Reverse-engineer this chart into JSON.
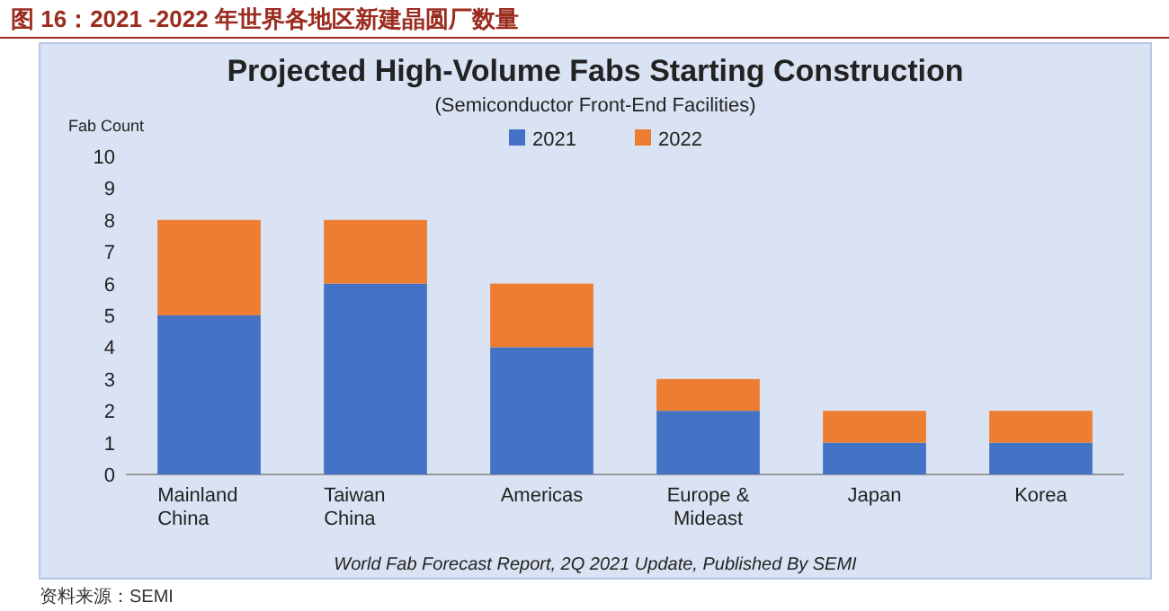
{
  "chart_data": {
    "type": "bar",
    "stacked": true,
    "title": "Projected High-Volume Fabs Starting Construction",
    "subtitle": "(Semiconductor Front-End Facilities)",
    "ylabel": "Fab Count",
    "annotations": [
      "图 16：2021 -2022 年世界各地区新建晶圆厂数量",
      "World Fab Forecast Report, 2Q 2021 Update, Published By SEMI",
      "资料来源：SEMI"
    ],
    "categories": [
      "Mainland China",
      "Taiwan China",
      "Americas",
      "Europe & Mideast",
      "Japan",
      "Korea"
    ],
    "series": [
      {
        "name": "2021",
        "color": "#4472c4",
        "values": [
          5,
          6,
          4,
          2,
          1,
          1
        ]
      },
      {
        "name": "2022",
        "color": "#ed7d31",
        "values": [
          3,
          2,
          2,
          1,
          1,
          1
        ]
      }
    ],
    "ylim": [
      0,
      10
    ],
    "yticks": [
      0,
      1,
      2,
      3,
      4,
      5,
      6,
      7,
      8,
      9,
      10
    ],
    "legend": "top",
    "grid": false
  }
}
